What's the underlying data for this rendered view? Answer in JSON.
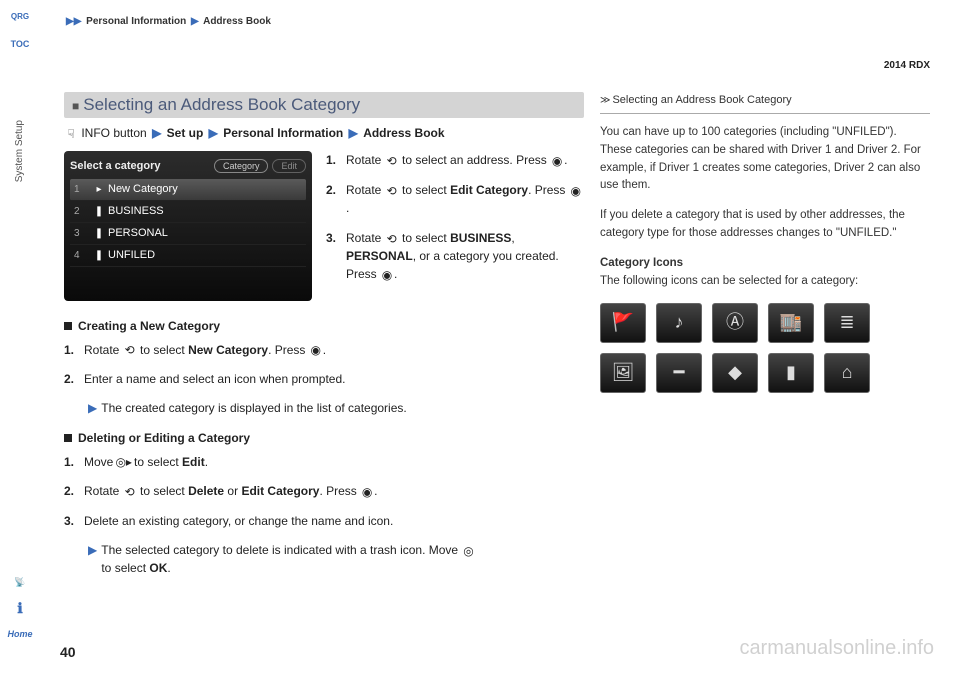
{
  "breadcrumb": {
    "seg1": "Personal Information",
    "seg2": "Address Book"
  },
  "model": "2014 RDX",
  "page_num": "40",
  "nav": {
    "toc": "TOC",
    "qrg": "QRG",
    "side_label": "System Setup",
    "home": "Home"
  },
  "section_title": "Selecting an Address Book Category",
  "path": {
    "info_btn": "INFO button",
    "setup": "Set up",
    "personal": "Personal Information",
    "addr": "Address Book"
  },
  "screenshot": {
    "title": "Select a category",
    "pill1": "Category",
    "pill2": "Edit",
    "rows": [
      {
        "n": "1",
        "icon": "▸",
        "label": "New Category",
        "sel": true
      },
      {
        "n": "2",
        "icon": "❚",
        "label": "BUSINESS",
        "sel": false
      },
      {
        "n": "3",
        "icon": "❚",
        "label": "PERSONAL",
        "sel": false
      },
      {
        "n": "4",
        "icon": "❚",
        "label": "UNFILED",
        "sel": false
      }
    ]
  },
  "steps_r": [
    {
      "n": "1.",
      "pre": "Rotate ",
      "post": " to select an address. Press ",
      "end": "."
    },
    {
      "n": "2.",
      "pre": "Rotate ",
      "mid": " to select ",
      "bold": "Edit Category",
      "post": ". Press ",
      "end": "."
    },
    {
      "n": "3.",
      "pre": "Rotate ",
      "mid": " to select ",
      "b1": "BUSINESS",
      "comma": ", ",
      "b2": "PERSONAL",
      "post2": ", or a category you created. Press ",
      "end": "."
    }
  ],
  "sub1": {
    "head": "Creating a New Category",
    "s1": {
      "n": "1.",
      "pre": "Rotate ",
      "mid": " to select ",
      "bold": "New Category",
      "post": ". Press ",
      "end": "."
    },
    "s2": {
      "n": "2.",
      "text": "Enter a name and select an icon when prompted."
    },
    "note": "The created category is displayed in the list of categories."
  },
  "sub2": {
    "head": "Deleting or Editing a Category",
    "s1": {
      "n": "1.",
      "pre": "Move ",
      "mid": " to select ",
      "bold": "Edit",
      "end": "."
    },
    "s2": {
      "n": "2.",
      "pre": "Rotate ",
      "mid": " to select ",
      "b1": "Delete",
      "or": " or ",
      "b2": "Edit Category",
      "post": ". Press ",
      "end": "."
    },
    "s3": {
      "n": "3.",
      "text": "Delete an existing category, or change the name and icon."
    },
    "note1": "The selected category to delete is indicated with a trash icon. Move ",
    "note2": " to select ",
    "ok": "OK",
    "note3": "."
  },
  "side": {
    "title": "Selecting an Address Book Category",
    "p1": "You can have up to 100 categories (including \"UNFILED\"). These categories can be shared with Driver 1 and Driver 2. For example, if Driver 1 creates some categories, Driver 2 can also use them.",
    "p2": "If you delete a category that is used by other addresses, the category type for those addresses changes to \"UNFILED.\"",
    "sub": "Category Icons",
    "p3": "The following icons can be selected for a category:",
    "icons": [
      "🚩",
      "♪",
      "Ⓐ",
      "🏬",
      "≣",
      "🖼",
      "━",
      "◆",
      "▮",
      "⌂"
    ]
  },
  "watermark": "carmanualsonline.info",
  "glyphs": {
    "rotate": "⟲",
    "press": "◉",
    "move": "◎▸",
    "move2": "◎"
  }
}
